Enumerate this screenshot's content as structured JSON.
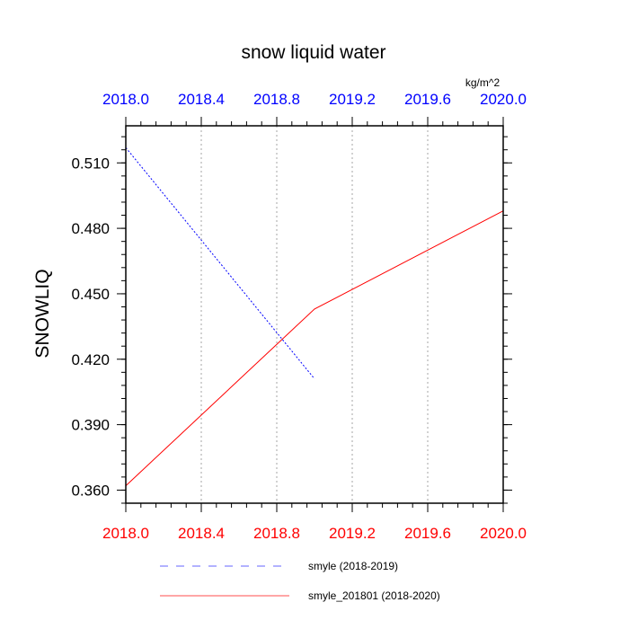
{
  "chart_data": {
    "type": "line",
    "title": "snow liquid water",
    "units": "kg/m^2",
    "ylabel": "SNOWLIQ",
    "xlabel": "",
    "ylim": [
      0.354,
      0.527
    ],
    "yticks": [
      0.36,
      0.39,
      0.42,
      0.45,
      0.48,
      0.51
    ],
    "ytick_labels": [
      "0.360",
      "0.390",
      "0.420",
      "0.450",
      "0.480",
      "0.510"
    ],
    "yminor_step": 0.006,
    "xlim_bottom": [
      2018.0,
      2020.0
    ],
    "xticks_bottom": [
      2018.0,
      2018.4,
      2018.8,
      2019.2,
      2019.6,
      2020.0
    ],
    "xtick_labels_bottom": [
      "2018.0",
      "2018.4",
      "2018.8",
      "2019.2",
      "2019.6",
      "2020.0"
    ],
    "xlim_top": [
      2018.0,
      2020.0
    ],
    "xticks_top": [
      2018.0,
      2018.4,
      2018.8,
      2019.2,
      2019.6,
      2020.0
    ],
    "xtick_labels_top": [
      "2018.0",
      "2018.4",
      "2018.8",
      "2019.2",
      "2019.6",
      "2020.0"
    ],
    "xminor_step": 0.08,
    "grid": "vertical dotted",
    "legend_position": "bottom",
    "series": [
      {
        "name": "smyle (2018-2019)",
        "axis": "top",
        "color": "#0000ff",
        "dash": "dashed",
        "x": [
          2018.0,
          2019.0
        ],
        "y": [
          0.517,
          0.411
        ]
      },
      {
        "name": "smyle_201801 (2018-2020)",
        "axis": "bottom",
        "color": "#ff0000",
        "dash": "solid",
        "x": [
          2018.0,
          2019.0,
          2020.0
        ],
        "y": [
          0.362,
          0.443,
          0.488
        ]
      }
    ],
    "colors": {
      "top_axis": "#0000ff",
      "bottom_axis": "#ff0000",
      "grid": "#b4b4b4",
      "frame": "#000000"
    }
  }
}
